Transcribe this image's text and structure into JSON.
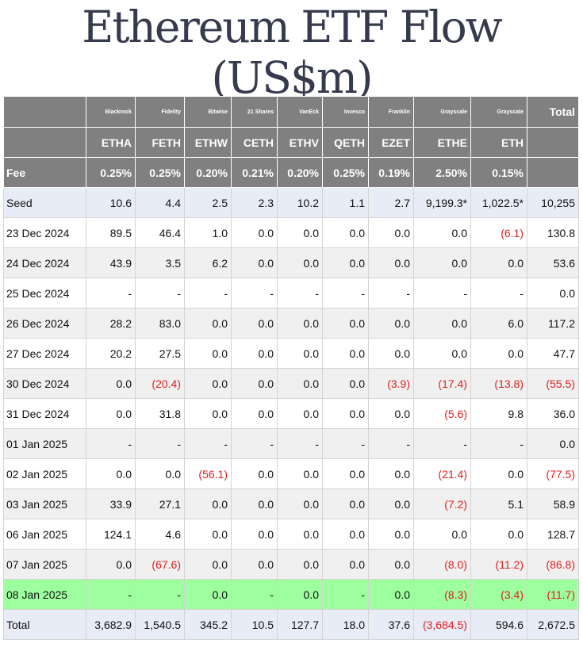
{
  "title": "Ethereum ETF Flow (US$m)",
  "header": {
    "issuers": [
      "",
      "Blackrock",
      "Fidelity",
      "Bitwise",
      "21 Shares",
      "VanEck",
      "Invesco",
      "Franklin",
      "Grayscale",
      "Grayscale",
      "Total"
    ],
    "tickers": [
      "",
      "ETHA",
      "FETH",
      "ETHW",
      "CETH",
      "ETHV",
      "QETH",
      "EZET",
      "ETHE",
      "ETH",
      ""
    ],
    "fees": [
      "Fee",
      "0.25%",
      "0.25%",
      "0.20%",
      "0.21%",
      "0.20%",
      "0.25%",
      "0.19%",
      "2.50%",
      "0.15%",
      ""
    ]
  },
  "rows": [
    {
      "label": "Seed",
      "values": [
        "10.6",
        "4.4",
        "2.5",
        "2.3",
        "10.2",
        "1.1",
        "2.7",
        "9,199.3*",
        "1,022.5*",
        "10,255"
      ]
    },
    {
      "label": "23 Dec 2024",
      "values": [
        "89.5",
        "46.4",
        "1.0",
        "0.0",
        "0.0",
        "0.0",
        "0.0",
        "0.0",
        "(6.1)",
        "130.8"
      ]
    },
    {
      "label": "24 Dec 2024",
      "values": [
        "43.9",
        "3.5",
        "6.2",
        "0.0",
        "0.0",
        "0.0",
        "0.0",
        "0.0",
        "0.0",
        "53.6"
      ]
    },
    {
      "label": "25 Dec 2024",
      "values": [
        "-",
        "-",
        "-",
        "-",
        "-",
        "-",
        "-",
        "-",
        "-",
        "0.0"
      ]
    },
    {
      "label": "26 Dec 2024",
      "values": [
        "28.2",
        "83.0",
        "0.0",
        "0.0",
        "0.0",
        "0.0",
        "0.0",
        "0.0",
        "6.0",
        "117.2"
      ]
    },
    {
      "label": "27 Dec 2024",
      "values": [
        "20.2",
        "27.5",
        "0.0",
        "0.0",
        "0.0",
        "0.0",
        "0.0",
        "0.0",
        "0.0",
        "47.7"
      ]
    },
    {
      "label": "30 Dec 2024",
      "values": [
        "0.0",
        "(20.4)",
        "0.0",
        "0.0",
        "0.0",
        "0.0",
        "(3.9)",
        "(17.4)",
        "(13.8)",
        "(55.5)"
      ]
    },
    {
      "label": "31 Dec 2024",
      "values": [
        "0.0",
        "31.8",
        "0.0",
        "0.0",
        "0.0",
        "0.0",
        "0.0",
        "(5.6)",
        "9.8",
        "36.0"
      ]
    },
    {
      "label": "01 Jan 2025",
      "values": [
        "-",
        "-",
        "-",
        "-",
        "-",
        "-",
        "-",
        "-",
        "-",
        "0.0"
      ]
    },
    {
      "label": "02 Jan 2025",
      "values": [
        "0.0",
        "0.0",
        "(56.1)",
        "0.0",
        "0.0",
        "0.0",
        "0.0",
        "(21.4)",
        "0.0",
        "(77.5)"
      ]
    },
    {
      "label": "03 Jan 2025",
      "values": [
        "33.9",
        "27.1",
        "0.0",
        "0.0",
        "0.0",
        "0.0",
        "0.0",
        "(7.2)",
        "5.1",
        "58.9"
      ]
    },
    {
      "label": "06 Jan 2025",
      "values": [
        "124.1",
        "4.6",
        "0.0",
        "0.0",
        "0.0",
        "0.0",
        "0.0",
        "0.0",
        "0.0",
        "128.7"
      ]
    },
    {
      "label": "07 Jan 2025",
      "values": [
        "0.0",
        "(67.6)",
        "0.0",
        "0.0",
        "0.0",
        "0.0",
        "0.0",
        "(8.0)",
        "(11.2)",
        "(86.8)"
      ]
    },
    {
      "label": "08 Jan 2025",
      "values": [
        "-",
        "-",
        "0.0",
        "-",
        "0.0",
        "-",
        "0.0",
        "(8.3)",
        "(3.4)",
        "(11.7)"
      ]
    },
    {
      "label": "Total",
      "values": [
        "3,682.9",
        "1,540.5",
        "345.2",
        "10.5",
        "127.7",
        "18.0",
        "37.6",
        "(3,684.5)",
        "594.6",
        "2,672.5"
      ]
    }
  ],
  "colors": {
    "header_bg": "#808080",
    "seed_total_bg": "#e8ecf6",
    "alt_row_bg": "#f0f0f0",
    "highlight_row_bg": "#9dff9d",
    "negative_text": "#e02020"
  }
}
